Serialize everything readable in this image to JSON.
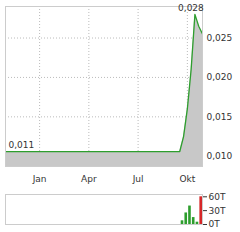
{
  "chart_data": [
    {
      "type": "area",
      "categories": [
        null,
        null,
        null,
        null,
        null,
        null,
        null,
        null,
        null,
        "Jan",
        null,
        null,
        null,
        null,
        null,
        null,
        null,
        null,
        null,
        null,
        null,
        null,
        "Apr",
        null,
        null,
        null,
        null,
        null,
        null,
        null,
        null,
        null,
        null,
        null,
        null,
        "Jul",
        null,
        null,
        null,
        null,
        null,
        null,
        null,
        null,
        null,
        null,
        null,
        null,
        "Okt",
        null,
        null,
        null,
        null
      ],
      "values": [
        0.0106,
        0.0106,
        0.0106,
        0.0106,
        0.0106,
        0.0106,
        0.0106,
        0.0106,
        0.0106,
        0.0106,
        0.0106,
        0.0106,
        0.0106,
        0.0106,
        0.0106,
        0.0106,
        0.0106,
        0.0106,
        0.0106,
        0.0106,
        0.0106,
        0.0106,
        0.0106,
        0.0106,
        0.0106,
        0.0106,
        0.0106,
        0.0106,
        0.0106,
        0.0106,
        0.0106,
        0.0106,
        0.0106,
        0.0106,
        0.0106,
        0.0106,
        0.0106,
        0.0106,
        0.0106,
        0.0106,
        0.0106,
        0.0106,
        0.0106,
        0.0106,
        0.0106,
        0.0106,
        0.0106,
        0.0125,
        0.016,
        0.021,
        0.028,
        0.0265,
        0.0255
      ],
      "color": "#2e9e2e",
      "ylim": [
        0.0087,
        0.029
      ],
      "yticks": [
        {
          "value": 0.01,
          "label": "0,010"
        },
        {
          "value": 0.015,
          "label": "0,015"
        },
        {
          "value": 0.02,
          "label": "0,020"
        },
        {
          "value": 0.025,
          "label": "0,025"
        }
      ],
      "grid": true,
      "annotations": [
        {
          "label": "0,028",
          "value": 0.028
        },
        {
          "label": "0,011",
          "value": 0.0106
        }
      ]
    },
    {
      "type": "bar",
      "categories": [
        null,
        null,
        null,
        null,
        null,
        null,
        null,
        null,
        null,
        "Jan",
        null,
        null,
        null,
        null,
        null,
        null,
        null,
        null,
        null,
        null,
        null,
        null,
        "Apr",
        null,
        null,
        null,
        null,
        null,
        null,
        null,
        null,
        null,
        null,
        null,
        null,
        "Jul",
        null,
        null,
        null,
        null,
        null,
        null,
        null,
        null,
        null,
        null,
        null,
        null,
        "Okt",
        null,
        null,
        null,
        null
      ],
      "values": [
        0,
        0,
        0,
        0,
        0,
        0,
        0,
        0,
        0,
        0,
        0,
        0,
        0,
        0,
        0,
        0,
        0,
        0,
        0,
        0,
        0,
        0,
        0,
        0,
        0,
        0,
        0,
        0,
        0,
        0,
        0,
        0,
        0,
        0,
        0,
        0,
        0,
        0,
        0,
        0,
        0,
        0,
        0,
        0,
        0,
        0,
        0,
        8000,
        25000,
        40000,
        15000,
        5000,
        60000
      ],
      "colors": [
        "#2e9e2e",
        "#2e9e2e",
        "#2e9e2e",
        "#2e9e2e",
        "#2e9e2e",
        "#2e9e2e",
        "#2e9e2e",
        "#2e9e2e",
        "#2e9e2e",
        "#2e9e2e",
        "#2e9e2e",
        "#2e9e2e",
        "#2e9e2e",
        "#2e9e2e",
        "#2e9e2e",
        "#2e9e2e",
        "#2e9e2e",
        "#2e9e2e",
        "#2e9e2e",
        "#2e9e2e",
        "#2e9e2e",
        "#2e9e2e",
        "#2e9e2e",
        "#2e9e2e",
        "#2e9e2e",
        "#2e9e2e",
        "#2e9e2e",
        "#2e9e2e",
        "#2e9e2e",
        "#2e9e2e",
        "#2e9e2e",
        "#2e9e2e",
        "#2e9e2e",
        "#2e9e2e",
        "#2e9e2e",
        "#2e9e2e",
        "#2e9e2e",
        "#2e9e2e",
        "#2e9e2e",
        "#2e9e2e",
        "#2e9e2e",
        "#2e9e2e",
        "#2e9e2e",
        "#2e9e2e",
        "#2e9e2e",
        "#2e9e2e",
        "#2e9e2e",
        "#2e9e2e",
        "#2e9e2e",
        "#2e9e2e",
        "#2e9e2e",
        "#2e9e2e",
        "#d62728"
      ],
      "ylim": [
        0,
        65000
      ],
      "yticks": [
        {
          "value": 60000,
          "label": "60T"
        },
        {
          "value": 30000,
          "label": "30T"
        },
        {
          "value": 0,
          "label": "0T"
        }
      ],
      "tick_labels": "y"
    }
  ]
}
